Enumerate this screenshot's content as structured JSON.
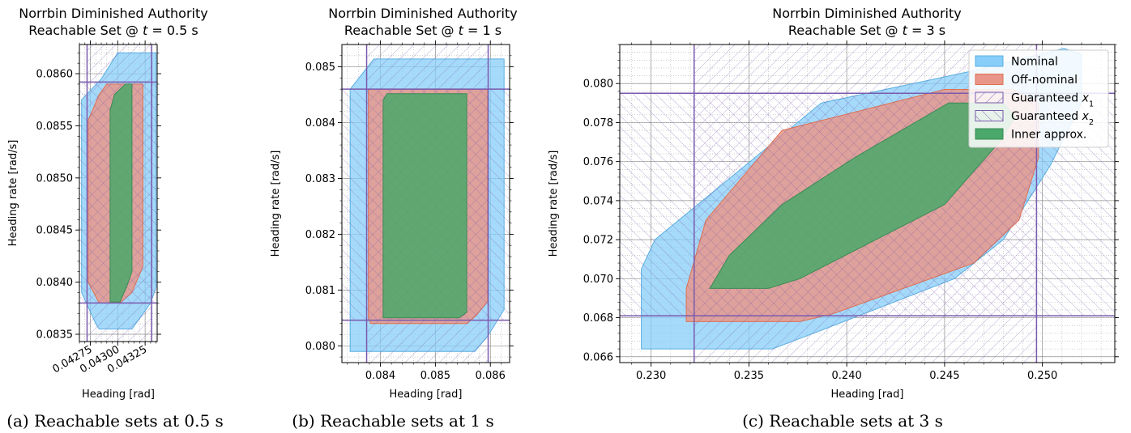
{
  "colors": {
    "nominal_fill": "#87CEFA",
    "nominal_edge": "#5aaee0",
    "offnominal_fill": "#E8968A",
    "offnominal_edge": "#e07050",
    "guaranteed": "#7a5aae",
    "inner_fill": "#4aa86a",
    "inner_edge": "#3b8a55",
    "grid_major": "#555555",
    "grid_minor": "#b0b0b0"
  },
  "captions": [
    "(a) Reachable sets at 0.5 s",
    "(b) Reachable sets at 1 s",
    "(c) Reachable sets at 3 s"
  ],
  "chart_data": [
    {
      "type": "area",
      "title_line1": "Norrbin Diminished Authority",
      "title_line2_prefix": "Reachable Set @ ",
      "title_var": "t",
      "title_line2_suffix": " = 0.5 s",
      "xlabel": "Heading [rad]",
      "ylabel": "Heading rate [rad/s]",
      "xlim": [
        0.04265,
        0.04336
      ],
      "ylim": [
        0.08343,
        0.08628
      ],
      "xticks": [
        0.04275,
        0.043,
        0.04325
      ],
      "xtick_labels": [
        "0.04275",
        "0.04300",
        "0.04325"
      ],
      "xticks_rotated": true,
      "yticks": [
        0.0835,
        0.084,
        0.0845,
        0.085,
        0.0855,
        0.086
      ],
      "ytick_labels": [
        "0.0835",
        "0.0840",
        "0.0845",
        "0.0850",
        "0.0855",
        "0.0860"
      ],
      "series": {
        "nominal": [
          [
            0.04283,
            0.08355
          ],
          [
            0.04313,
            0.08355
          ],
          [
            0.0433,
            0.0838
          ],
          [
            0.04335,
            0.08395
          ],
          [
            0.04335,
            0.0862
          ],
          [
            0.043,
            0.0862
          ],
          [
            0.04285,
            0.08595
          ],
          [
            0.04267,
            0.08575
          ],
          [
            0.04267,
            0.0839
          ],
          [
            0.0428,
            0.0836
          ]
        ],
        "offnominal": [
          [
            0.04283,
            0.0838
          ],
          [
            0.04302,
            0.0838
          ],
          [
            0.04313,
            0.0839
          ],
          [
            0.04323,
            0.08415
          ],
          [
            0.04323,
            0.0859
          ],
          [
            0.0429,
            0.0859
          ],
          [
            0.04283,
            0.0858
          ],
          [
            0.04273,
            0.08555
          ],
          [
            0.04273,
            0.084
          ]
        ],
        "inner": [
          [
            0.04293,
            0.08381
          ],
          [
            0.04302,
            0.08381
          ],
          [
            0.04308,
            0.08395
          ],
          [
            0.04313,
            0.0841
          ],
          [
            0.04313,
            0.0859
          ],
          [
            0.04307,
            0.0859
          ],
          [
            0.04297,
            0.0858
          ],
          [
            0.04293,
            0.08565
          ]
        ],
        "guaranteed_x1": [
          0.04272,
          0.04331
        ],
        "guaranteed_x2": [
          0.0838,
          0.08592
        ]
      }
    },
    {
      "type": "area",
      "title_line1": "Norrbin Diminished Authority",
      "title_line2_prefix": "Reachable Set @ ",
      "title_var": "t",
      "title_line2_suffix": " = 1 s",
      "xlabel": "Heading [rad]",
      "ylabel": "Heading rate [rad/s]",
      "xlim": [
        0.0833,
        0.08635
      ],
      "ylim": [
        0.0797,
        0.0854
      ],
      "xticks": [
        0.084,
        0.085,
        0.086
      ],
      "xtick_labels": [
        "0.084",
        "0.085",
        "0.086"
      ],
      "xticks_rotated": false,
      "yticks": [
        0.08,
        0.081,
        0.082,
        0.083,
        0.084,
        0.085
      ],
      "ytick_labels": [
        "0.080",
        "0.081",
        "0.082",
        "0.083",
        "0.084",
        "0.085"
      ],
      "series": {
        "nominal": [
          [
            0.08345,
            0.0799
          ],
          [
            0.08572,
            0.0799
          ],
          [
            0.08597,
            0.0802
          ],
          [
            0.08625,
            0.08065
          ],
          [
            0.08625,
            0.08514
          ],
          [
            0.08388,
            0.08514
          ],
          [
            0.08345,
            0.0846
          ]
        ],
        "offnominal": [
          [
            0.08382,
            0.0804
          ],
          [
            0.08558,
            0.0804
          ],
          [
            0.08575,
            0.08055
          ],
          [
            0.08595,
            0.0808
          ],
          [
            0.08595,
            0.0846
          ],
          [
            0.08378,
            0.0846
          ],
          [
            0.08378,
            0.0805
          ]
        ],
        "inner": [
          [
            0.08405,
            0.0805
          ],
          [
            0.08543,
            0.0805
          ],
          [
            0.08557,
            0.0806
          ],
          [
            0.08557,
            0.08452
          ],
          [
            0.08412,
            0.08452
          ],
          [
            0.08405,
            0.0844
          ]
        ],
        "guaranteed_x1": [
          0.08375,
          0.08596
        ],
        "guaranteed_x2": [
          0.08046,
          0.0846
        ]
      }
    },
    {
      "type": "area",
      "title_line1": "Norrbin Diminished Authority",
      "title_line2_prefix": "Reachable Set @ ",
      "title_var": "t",
      "title_line2_suffix": " = 3 s",
      "xlabel": "Heading [rad]",
      "ylabel": "Heading rate [rad/s]",
      "xlim": [
        0.2284,
        0.2537
      ],
      "ylim": [
        0.0657,
        0.082
      ],
      "xticks": [
        0.23,
        0.235,
        0.24,
        0.245,
        0.25
      ],
      "xtick_labels": [
        "0.230",
        "0.235",
        "0.240",
        "0.245",
        "0.250"
      ],
      "xticks_rotated": false,
      "yticks": [
        0.066,
        0.068,
        0.07,
        0.072,
        0.074,
        0.076,
        0.078,
        0.08
      ],
      "ytick_labels": [
        "0.066",
        "0.068",
        "0.070",
        "0.072",
        "0.074",
        "0.076",
        "0.078",
        "0.080"
      ],
      "series": {
        "nominal": [
          [
            0.2295,
            0.0664
          ],
          [
            0.2362,
            0.0664
          ],
          [
            0.2383,
            0.0672
          ],
          [
            0.2455,
            0.07
          ],
          [
            0.248,
            0.072
          ],
          [
            0.2504,
            0.0758
          ],
          [
            0.252,
            0.079
          ],
          [
            0.252,
            0.0815
          ],
          [
            0.2511,
            0.0818
          ],
          [
            0.2462,
            0.0806
          ],
          [
            0.2387,
            0.079
          ],
          [
            0.2302,
            0.072
          ],
          [
            0.2295,
            0.0705
          ]
        ],
        "offnominal": [
          [
            0.2318,
            0.0678
          ],
          [
            0.2376,
            0.0678
          ],
          [
            0.2393,
            0.0682
          ],
          [
            0.2465,
            0.0708
          ],
          [
            0.2488,
            0.073
          ],
          [
            0.2498,
            0.0762
          ],
          [
            0.2498,
            0.079
          ],
          [
            0.2485,
            0.0797
          ],
          [
            0.245,
            0.0797
          ],
          [
            0.2367,
            0.0776
          ],
          [
            0.2328,
            0.073
          ],
          [
            0.2318,
            0.0695
          ]
        ],
        "inner": [
          [
            0.233,
            0.0695
          ],
          [
            0.236,
            0.0695
          ],
          [
            0.2376,
            0.07
          ],
          [
            0.245,
            0.0738
          ],
          [
            0.2478,
            0.077
          ],
          [
            0.2486,
            0.0783
          ],
          [
            0.248,
            0.079
          ],
          [
            0.2452,
            0.079
          ],
          [
            0.2404,
            0.0762
          ],
          [
            0.2367,
            0.0738
          ],
          [
            0.234,
            0.0712
          ]
        ],
        "guaranteed_x1": [
          0.2322,
          0.2497
        ],
        "guaranteed_x2": [
          0.0681,
          0.0795
        ]
      },
      "legend": {
        "position": "upper right",
        "entries": [
          {
            "key": "nominal",
            "label": "Nominal"
          },
          {
            "key": "offnominal",
            "label": "Off-nominal"
          },
          {
            "key": "guaranteed_x1",
            "label": "Guaranteed ",
            "sub": "x",
            "subindex": "1"
          },
          {
            "key": "guaranteed_x2",
            "label": "Guaranteed ",
            "sub": "x",
            "subindex": "2"
          },
          {
            "key": "inner",
            "label": "Inner approx."
          }
        ]
      }
    }
  ]
}
